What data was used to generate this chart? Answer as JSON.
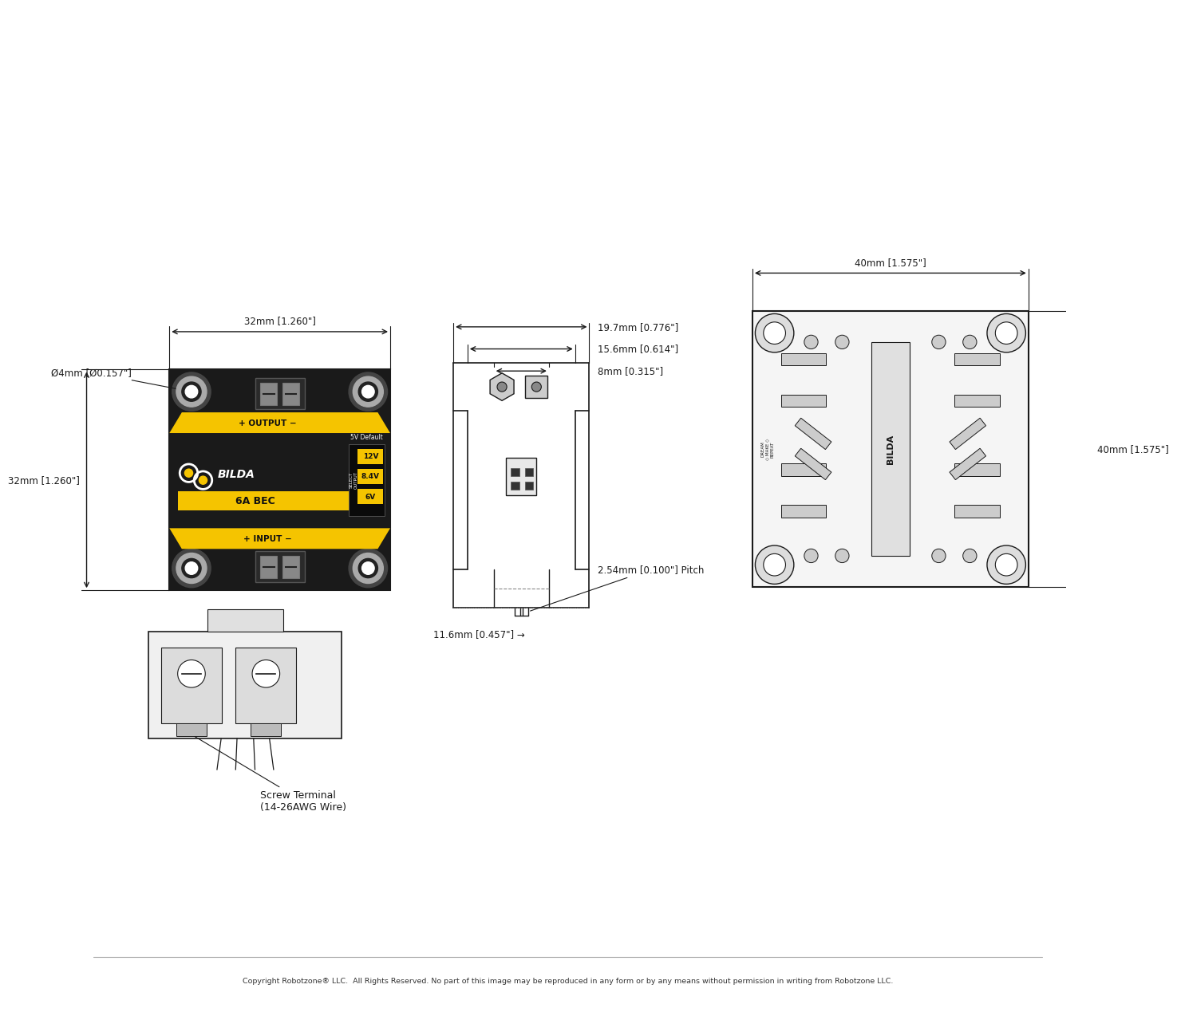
{
  "bg_color": "#ffffff",
  "line_color": "#1a1a1a",
  "device_bg": "#1a1a1a",
  "yellow": "#f5c400",
  "gray_hole": "#888888",
  "copyright": "Copyright Robotzone® LLC.  All Rights Reserved. No part of this image may be reproduced in any form or by any means without permission in writing from Robotzone LLC.",
  "dim_width_top": "32mm [1.260\"]",
  "dim_height_left": "32mm [1.260\"]",
  "dim_hole": "Ø4mm [Ø0.157\"]",
  "dim_side_top": "19.7mm [0.776\"]",
  "dim_side_mid": "15.6mm [0.614\"]",
  "dim_side_bot": "8mm [0.315\"]",
  "dim_side_h": "11.6mm [0.457\"]",
  "dim_pitch": "2.54mm [0.100\"] Pitch",
  "dim_back_w": "40mm [1.575\"]",
  "dim_back_h": "40mm [1.575\"]",
  "label_output": "+ OUTPUT −",
  "label_input": "+ INPUT −",
  "label_bec": "6A BEC",
  "label_5v": "5V Default",
  "label_12v": "12V",
  "label_84v": "8.4V",
  "label_6v": "6V",
  "label_select": "SELECT\nOUTPUT",
  "label_screw": "Screw Terminal\n(14-26AWG Wire)"
}
